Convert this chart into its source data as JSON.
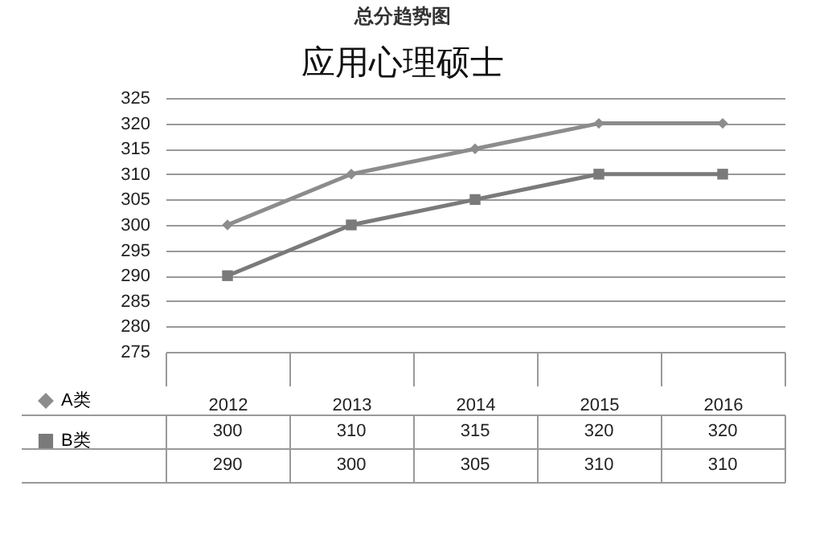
{
  "chart_data": {
    "type": "line",
    "title": "总分趋势图",
    "subtitle": "应用心理硕士",
    "categories": [
      "2012",
      "2013",
      "2014",
      "2015",
      "2016"
    ],
    "series": [
      {
        "name": "A类",
        "color": "#8c8c8c",
        "marker": "diamond",
        "values": [
          300,
          310,
          315,
          320,
          320
        ],
        "value_labels": [
          "300",
          "310",
          "315",
          "320",
          "320"
        ]
      },
      {
        "name": "B类",
        "color": "#7a7a7a",
        "marker": "square",
        "values": [
          290,
          300,
          305,
          310,
          310
        ],
        "value_labels": [
          "290",
          "300",
          "305",
          "310",
          "310"
        ]
      }
    ],
    "ylim": [
      275,
      325
    ],
    "yticks": [
      275,
      280,
      285,
      290,
      295,
      300,
      305,
      310,
      315,
      320,
      325
    ],
    "grid": "y",
    "legend": "bottom left",
    "line_style": "solid"
  }
}
